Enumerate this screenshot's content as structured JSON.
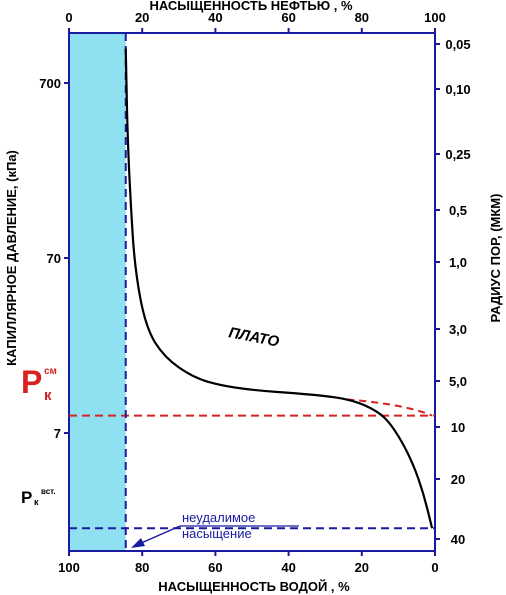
{
  "chart_data": {
    "type": "line",
    "title": "",
    "top_axis": {
      "label": "НАСЫЩЕННОСТЬ НЕФТЬЮ , %",
      "ticks": [
        0,
        20,
        40,
        60,
        80,
        100
      ],
      "tick_labels": [
        "0",
        "20",
        "40",
        "60",
        "80",
        "100"
      ]
    },
    "bottom_axis": {
      "label": "НАСЫЩЕННОСТЬ ВОДОЙ , %",
      "ticks": [
        100,
        80,
        60,
        40,
        20,
        0
      ],
      "tick_labels": [
        "100",
        "80",
        "60",
        "40",
        "20",
        "0"
      ],
      "reversed": true
    },
    "left_axis": {
      "label": "КАПИЛЛЯРНОЕ ДАВЛЕНИЕ, (кПа)",
      "scale": "log",
      "ticks": [
        700,
        70,
        7
      ],
      "tick_labels": [
        "700",
        "70",
        "7"
      ]
    },
    "right_axis": {
      "label": "РАДИУС ПОР, (МКМ)",
      "tick_labels": [
        "0,05",
        "0,10",
        "0,25",
        "0,5",
        "1,0",
        "3,0",
        "5,0",
        "10",
        "20",
        "40"
      ]
    },
    "xlim": [
      100,
      0
    ],
    "series": [
      {
        "x": [
          84.5,
          84.3,
          84,
          83.2,
          82,
          79,
          74,
          66,
          58,
          48,
          38,
          30,
          24,
          19,
          14,
          10,
          6,
          3,
          0.8
        ],
        "y": [
          1100,
          700,
          350,
          150,
          60,
          28,
          19,
          14.5,
          13,
          12.2,
          11.8,
          11.4,
          10.9,
          10.1,
          8.8,
          6.8,
          4.7,
          3.1,
          2.0
        ]
      }
    ],
    "annotations": {
      "plateau": "ПЛАТО",
      "pk_cm_main": "P",
      "pk_cm_sub": "к",
      "pk_cm_sup": "см",
      "pk_vst_main": "P",
      "pk_vst_sub": "к",
      "pk_vst_sup": "вст.",
      "residual_line1": "неудалимое",
      "residual_line2": "насыщение"
    },
    "reference_lines": {
      "pk_cm": 8.8,
      "pk_vst": 2.0,
      "irreducible_water": 84.5
    },
    "colors": {
      "curve": "#000000",
      "frame": "#1a1aa0",
      "shade": "#8fe0f0",
      "pk_cm_line": "#d62222",
      "pk_vst_line": "#1a1aa0",
      "pk_cm_text": "#d62222",
      "residual_text": "#1a1aa0"
    },
    "grid": false
  }
}
